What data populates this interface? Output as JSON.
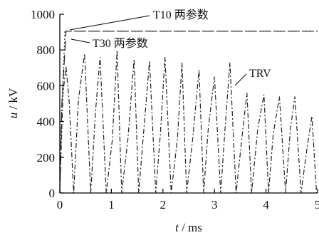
{
  "chart_data": {
    "type": "line",
    "title": "",
    "xlabel": {
      "var": "t",
      "unit": " / ms"
    },
    "ylabel": {
      "var": "u",
      "unit": " / kV"
    },
    "xlim": [
      0,
      5
    ],
    "ylim": [
      0,
      1000
    ],
    "xticks": [
      0,
      1,
      2,
      3,
      4,
      5
    ],
    "yticks": [
      0,
      200,
      400,
      600,
      800,
      1000
    ],
    "grid": false,
    "series": [
      {
        "name": "T10 两参数",
        "style": "long-dash",
        "color": "#222222",
        "x": [
          0,
          0.04,
          0.12,
          5
        ],
        "y": [
          0,
          500,
          905,
          905
        ]
      },
      {
        "name": "T30 两参数",
        "style": "dotted",
        "color": "#222222",
        "x": [
          0,
          0.03,
          0.1,
          5
        ],
        "y": [
          0,
          400,
          905,
          905
        ]
      },
      {
        "name": "TRV",
        "style": "dash-dot",
        "color": "#222222",
        "x": [
          0,
          0.06,
          0.12,
          0.18,
          0.27,
          0.36,
          0.48,
          0.6,
          0.69,
          0.78,
          0.9,
          1.02,
          1.11,
          1.2,
          1.32,
          1.44,
          1.53,
          1.62,
          1.74,
          1.86,
          1.95,
          2.04,
          2.16,
          2.28,
          2.37,
          2.46,
          2.58,
          2.7,
          2.79,
          2.88,
          3.0,
          3.12,
          3.21,
          3.3,
          3.42,
          3.54,
          3.63,
          3.72,
          3.84,
          3.96,
          4.05,
          4.14,
          4.26,
          4.38,
          4.47,
          4.56,
          4.68,
          4.8,
          4.89,
          4.98
        ],
        "y": [
          0,
          550,
          710,
          520,
          0,
          520,
          780,
          0,
          450,
          760,
          0,
          300,
          800,
          0,
          300,
          750,
          0,
          320,
          740,
          0,
          330,
          760,
          0,
          300,
          730,
          0,
          310,
          690,
          0,
          360,
          650,
          0,
          380,
          730,
          0,
          330,
          560,
          0,
          360,
          550,
          0,
          330,
          540,
          0,
          350,
          540,
          0,
          260,
          430,
          0
        ]
      }
    ],
    "annotations": [
      {
        "text": "T10 两参数",
        "points_to": "T10 两参数"
      },
      {
        "text": "T30 两参数",
        "points_to": "T30 两参数"
      },
      {
        "text": "TRV",
        "points_to": "TRV"
      }
    ]
  }
}
